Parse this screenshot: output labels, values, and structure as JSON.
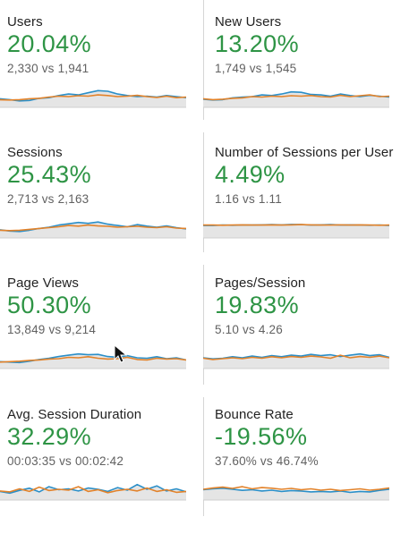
{
  "colors": {
    "accent_positive": "#2e9445",
    "current_series": "#2b8fc8",
    "previous_series": "#e2822a",
    "area_fill": "#e5e5e5"
  },
  "metrics": [
    {
      "name": "Users",
      "change": "20.04%",
      "comparison": "2,330 vs 1,941",
      "spark_current": [
        0.4,
        0.36,
        0.3,
        0.32,
        0.42,
        0.45,
        0.55,
        0.62,
        0.58,
        0.68,
        0.78,
        0.75,
        0.62,
        0.55,
        0.5,
        0.52,
        0.48,
        0.55,
        0.5,
        0.45
      ],
      "spark_previous": [
        0.35,
        0.34,
        0.36,
        0.4,
        0.42,
        0.48,
        0.52,
        0.5,
        0.54,
        0.52,
        0.58,
        0.55,
        0.5,
        0.52,
        0.56,
        0.5,
        0.46,
        0.52,
        0.45,
        0.48
      ]
    },
    {
      "name": "New Users",
      "change": "13.20%",
      "comparison": "1,749 vs 1,545",
      "spark_current": [
        0.38,
        0.34,
        0.36,
        0.44,
        0.48,
        0.5,
        0.58,
        0.55,
        0.62,
        0.72,
        0.7,
        0.6,
        0.58,
        0.52,
        0.62,
        0.55,
        0.5,
        0.56,
        0.52,
        0.48
      ],
      "spark_previous": [
        0.4,
        0.36,
        0.38,
        0.42,
        0.44,
        0.5,
        0.48,
        0.52,
        0.5,
        0.54,
        0.52,
        0.55,
        0.5,
        0.48,
        0.56,
        0.5,
        0.54,
        0.58,
        0.5,
        0.52
      ]
    },
    {
      "name": "Sessions",
      "change": "25.43%",
      "comparison": "2,713 vs 2,163",
      "spark_current": [
        0.38,
        0.32,
        0.3,
        0.36,
        0.44,
        0.5,
        0.6,
        0.66,
        0.72,
        0.68,
        0.74,
        0.64,
        0.58,
        0.52,
        0.62,
        0.55,
        0.5,
        0.56,
        0.48,
        0.42
      ],
      "spark_previous": [
        0.36,
        0.34,
        0.36,
        0.4,
        0.44,
        0.48,
        0.52,
        0.58,
        0.55,
        0.6,
        0.56,
        0.54,
        0.5,
        0.52,
        0.54,
        0.5,
        0.48,
        0.52,
        0.46,
        0.44
      ]
    },
    {
      "name": "Number of Sessions per User",
      "change": "4.49%",
      "comparison": "1.16 vs 1.11",
      "spark_current": [
        0.58,
        0.58,
        0.6,
        0.59,
        0.6,
        0.6,
        0.61,
        0.62,
        0.61,
        0.63,
        0.62,
        0.6,
        0.61,
        0.62,
        0.6,
        0.61,
        0.6,
        0.59,
        0.6,
        0.58
      ],
      "spark_previous": [
        0.6,
        0.6,
        0.59,
        0.6,
        0.61,
        0.6,
        0.6,
        0.61,
        0.6,
        0.61,
        0.62,
        0.61,
        0.6,
        0.6,
        0.61,
        0.6,
        0.61,
        0.6,
        0.59,
        0.6
      ]
    },
    {
      "name": "Page Views",
      "change": "50.30%",
      "comparison": "13,849 vs 9,214",
      "spark_current": [
        0.32,
        0.3,
        0.28,
        0.34,
        0.42,
        0.48,
        0.56,
        0.62,
        0.68,
        0.64,
        0.66,
        0.56,
        0.52,
        0.6,
        0.5,
        0.48,
        0.55,
        0.46,
        0.5,
        0.4
      ],
      "spark_previous": [
        0.3,
        0.32,
        0.34,
        0.38,
        0.4,
        0.44,
        0.46,
        0.52,
        0.5,
        0.55,
        0.48,
        0.44,
        0.46,
        0.52,
        0.42,
        0.4,
        0.48,
        0.44,
        0.46,
        0.4
      ]
    },
    {
      "name": "Pages/Session",
      "change": "19.83%",
      "comparison": "5.10 vs 4.26",
      "spark_current": [
        0.5,
        0.45,
        0.48,
        0.55,
        0.5,
        0.58,
        0.52,
        0.6,
        0.55,
        0.62,
        0.58,
        0.66,
        0.6,
        0.64,
        0.56,
        0.62,
        0.68,
        0.6,
        0.64,
        0.52
      ],
      "spark_previous": [
        0.48,
        0.42,
        0.46,
        0.5,
        0.46,
        0.52,
        0.48,
        0.55,
        0.5,
        0.56,
        0.52,
        0.58,
        0.54,
        0.48,
        0.62,
        0.5,
        0.56,
        0.52,
        0.58,
        0.5
      ]
    },
    {
      "name": "Avg. Session Duration",
      "change": "32.29%",
      "comparison": "00:03:35 vs 00:02:42",
      "spark_current": [
        0.4,
        0.32,
        0.45,
        0.55,
        0.38,
        0.62,
        0.48,
        0.52,
        0.42,
        0.56,
        0.5,
        0.4,
        0.58,
        0.46,
        0.72,
        0.5,
        0.66,
        0.42,
        0.52,
        0.38
      ],
      "spark_previous": [
        0.42,
        0.38,
        0.52,
        0.4,
        0.6,
        0.44,
        0.5,
        0.46,
        0.62,
        0.4,
        0.48,
        0.34,
        0.44,
        0.5,
        0.42,
        0.56,
        0.4,
        0.48,
        0.36,
        0.4
      ]
    },
    {
      "name": "Bounce Rate",
      "change": "-19.56%",
      "comparison": "37.60% vs 46.74%",
      "spark_current": [
        0.48,
        0.52,
        0.55,
        0.5,
        0.45,
        0.48,
        0.42,
        0.46,
        0.4,
        0.44,
        0.42,
        0.38,
        0.4,
        0.38,
        0.42,
        0.36,
        0.4,
        0.38,
        0.45,
        0.5
      ],
      "spark_previous": [
        0.5,
        0.56,
        0.6,
        0.54,
        0.62,
        0.52,
        0.58,
        0.55,
        0.5,
        0.54,
        0.48,
        0.52,
        0.46,
        0.5,
        0.44,
        0.48,
        0.52,
        0.46,
        0.5,
        0.56
      ]
    }
  ]
}
